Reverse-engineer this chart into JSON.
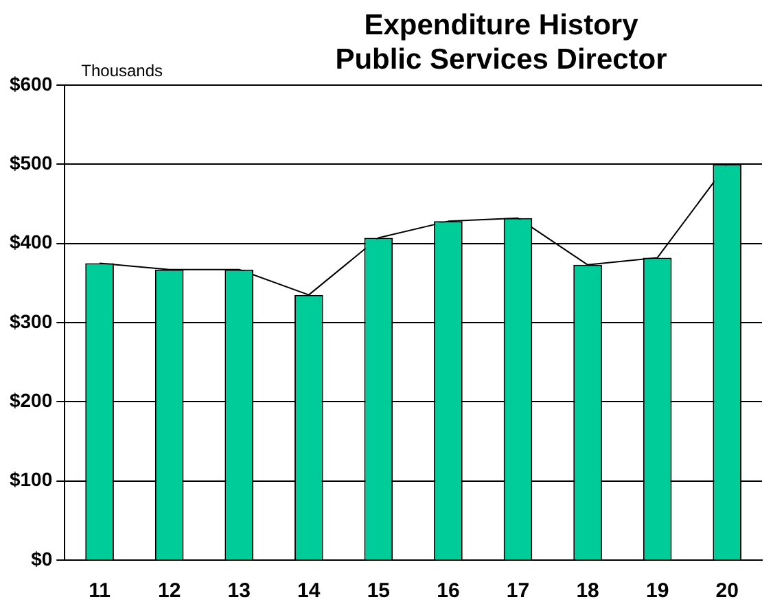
{
  "chart_data": {
    "type": "bar",
    "title": "Expenditure History\nPublic Services Director",
    "ylabel": "Thousands",
    "categories": [
      "11",
      "12",
      "13",
      "14",
      "15",
      "16",
      "17",
      "18",
      "19",
      "20"
    ],
    "series": [
      {
        "color": "#00cc99",
        "values": [
          375,
          367,
          367,
          335,
          407,
          428,
          432,
          373,
          382,
          500
        ]
      },
      {
        "type": "line",
        "color": "#000000",
        "marker": "none",
        "values": [
          375,
          367,
          367,
          335,
          407,
          428,
          432,
          373,
          382,
          500
        ]
      }
    ],
    "ylim": [
      0,
      600
    ],
    "yticks": [
      {
        "value": 0,
        "label": "$0"
      },
      {
        "value": 100,
        "label": "$100"
      },
      {
        "value": 200,
        "label": "$200"
      },
      {
        "value": 300,
        "label": "$300"
      },
      {
        "value": 400,
        "label": "$400"
      },
      {
        "value": 500,
        "label": "$500"
      },
      {
        "value": 600,
        "label": "$600"
      }
    ],
    "grid": "y",
    "legend": false
  }
}
